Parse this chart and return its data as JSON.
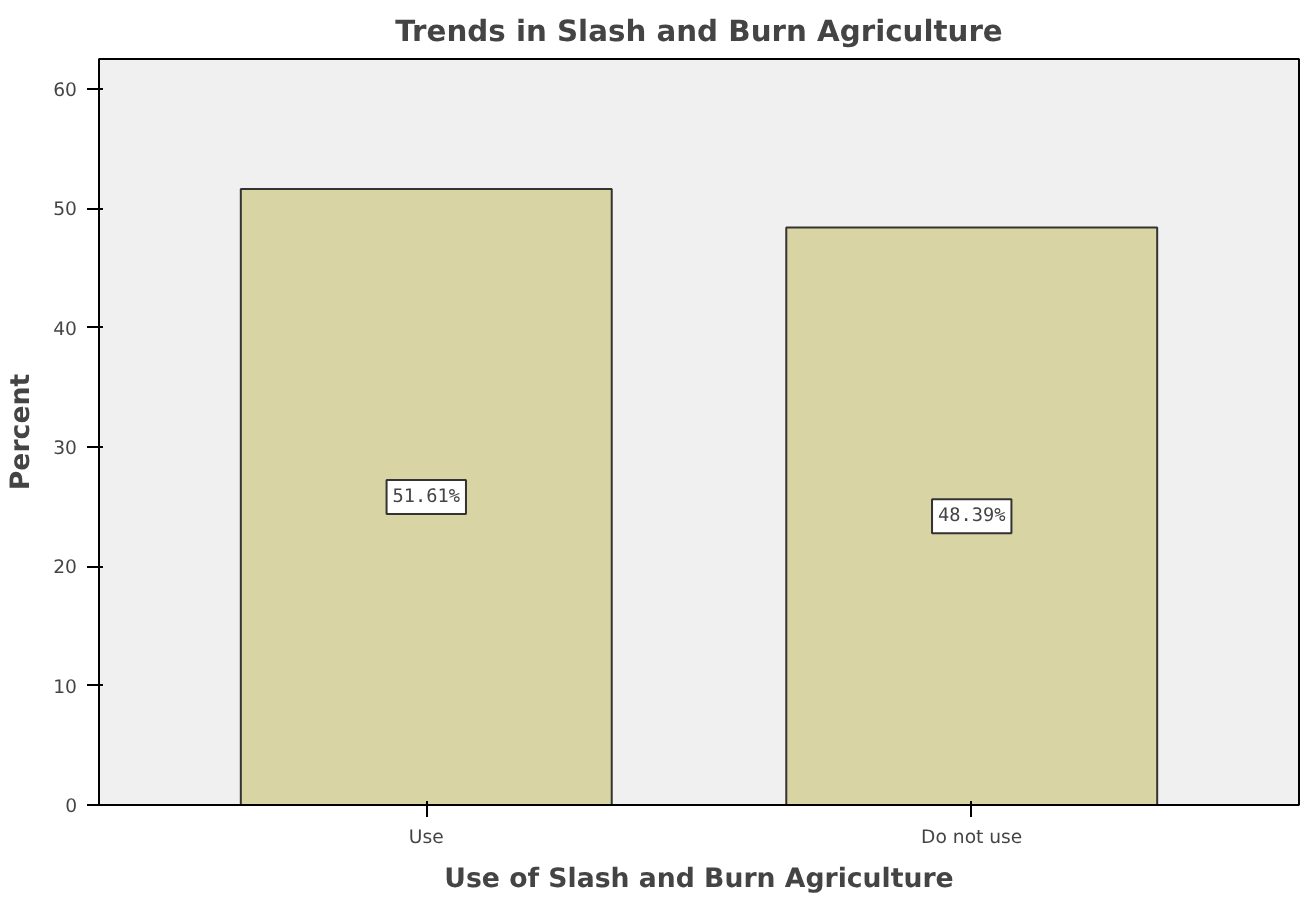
{
  "chart_data": {
    "type": "bar",
    "title": "Trends in Slash and Burn Agriculture",
    "xlabel": "Use of Slash and Burn Agriculture",
    "ylabel": "Percent",
    "categories": [
      "Use",
      "Do not use"
    ],
    "values": [
      51.61,
      48.39
    ],
    "value_labels": [
      "51.61%",
      "48.39%"
    ],
    "color": "#d9d4a3",
    "ylim": [
      0,
      62.5
    ],
    "yticks": [
      0,
      10,
      20,
      30,
      40,
      50,
      60
    ],
    "grid": false
  }
}
